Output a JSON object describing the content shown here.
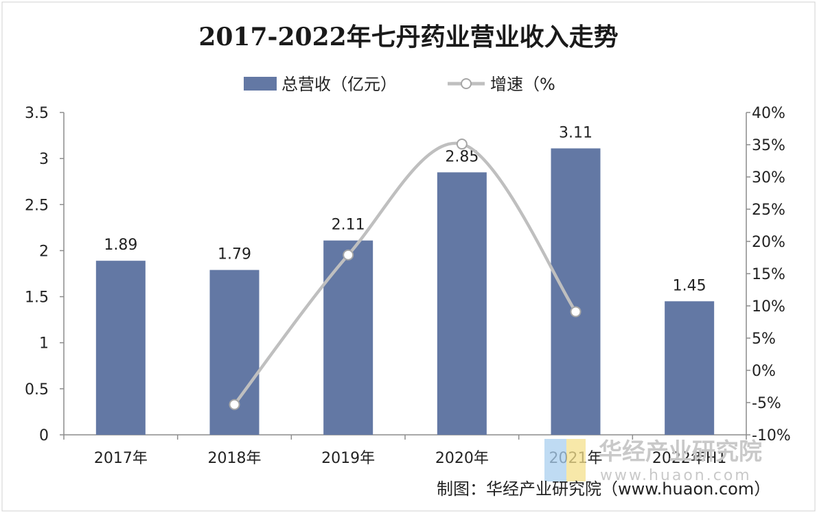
{
  "chart_data": {
    "type": "bar",
    "title": "2017-2022年七丹药业营业收入走势",
    "categories": [
      "2017年",
      "2018年",
      "2019年",
      "2020年",
      "2021年",
      "2022年H1"
    ],
    "series": [
      {
        "name": "总营收（亿元）",
        "type": "bar",
        "axis": "left",
        "values": [
          1.89,
          1.79,
          2.11,
          2.85,
          3.11,
          1.45
        ],
        "labels": [
          "1.89",
          "1.79",
          "2.11",
          "2.85",
          "3.11",
          "1.45"
        ],
        "color": "#6378a4"
      },
      {
        "name": "增速（%",
        "type": "line",
        "axis": "right",
        "values": [
          null,
          -5.3,
          17.9,
          35.1,
          9.1,
          null
        ],
        "color": "#bfbfbf"
      }
    ],
    "y_left": {
      "min": 0,
      "max": 3.5,
      "ticks": [
        "0",
        "0.5",
        "1",
        "1.5",
        "2",
        "2.5",
        "3",
        "3.5"
      ]
    },
    "y_right": {
      "min": -10,
      "max": 40,
      "ticks": [
        "-10%",
        "-5%",
        "0%",
        "5%",
        "10%",
        "15%",
        "20%",
        "25%",
        "30%",
        "35%",
        "40%"
      ]
    },
    "legend_position": "top-center",
    "grid": false
  },
  "source": "制图：华经产业研究院（www.huaon.com）",
  "watermark": {
    "name": "华经产业研究院",
    "url": "www.huaon.com"
  }
}
